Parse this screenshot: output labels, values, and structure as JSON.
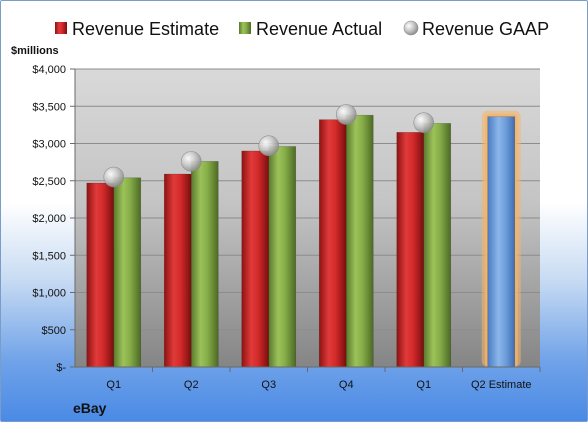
{
  "company": "eBay",
  "colors": {
    "estimate": "#d42a2a",
    "actual": "#7fa742",
    "gaap": "#c8c8c8",
    "q2_estimate": "#6f9fdc",
    "q2_glow": "#f6b46a"
  },
  "chart_data": {
    "type": "bar",
    "ylabel": "$millions",
    "ylim": [
      0,
      4000
    ],
    "ytick_labels": [
      "$-",
      "$500",
      "$1,000",
      "$1,500",
      "$2,000",
      "$2,500",
      "$3,000",
      "$3,500",
      "$4,000"
    ],
    "grid": true,
    "legend_position": "top",
    "categories": [
      "Q1",
      "Q2",
      "Q3",
      "Q4",
      "Q1",
      "Q2 Estimate"
    ],
    "series": [
      {
        "name": "Revenue Estimate",
        "values": [
          2470,
          2590,
          2900,
          3320,
          3150,
          null
        ]
      },
      {
        "name": "Revenue Actual",
        "values": [
          2540,
          2760,
          2960,
          3380,
          3270,
          null
        ]
      },
      {
        "name": "Revenue GAAP",
        "values": [
          2550,
          2760,
          2970,
          3390,
          3280,
          null
        ]
      },
      {
        "name": "",
        "values": [
          null,
          null,
          null,
          null,
          null,
          3360
        ]
      }
    ]
  }
}
